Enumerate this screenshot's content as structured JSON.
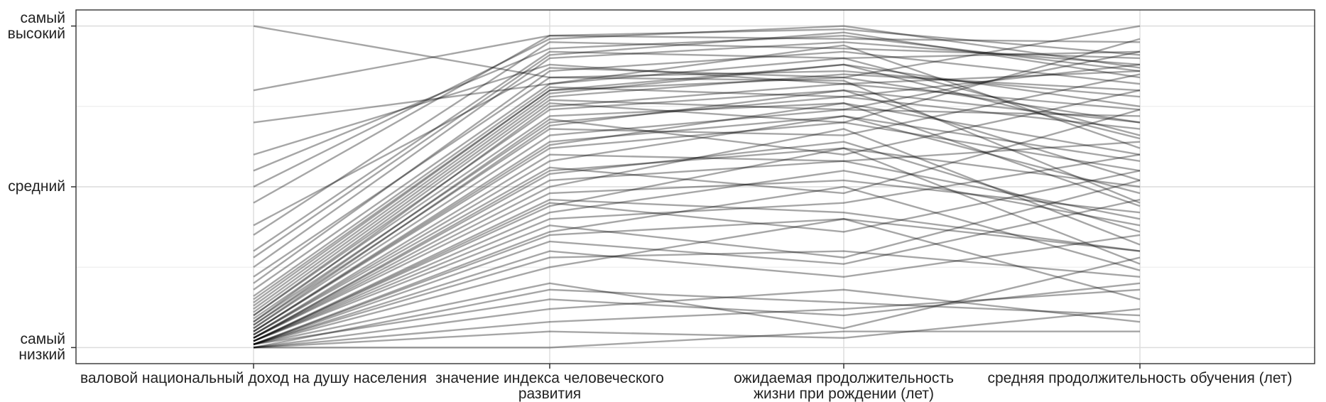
{
  "chart_data": {
    "type": "parallel",
    "categories": [
      "валовой национальный доход на душу населения",
      "значение индекса человеческого развития",
      "ожидаемая продолжительность жизни при рождении (лет)",
      "средняя продолжительность обучения (лет)"
    ],
    "ylim": [
      -0.05,
      1.05
    ],
    "yticks": [
      {
        "value": 0,
        "label": "самый низкий"
      },
      {
        "value": 0.5,
        "label": "средний"
      },
      {
        "value": 1,
        "label": "самый высокий"
      }
    ],
    "minor_grid": [
      0.25,
      0.75
    ],
    "grid": true,
    "line_color": "#000000",
    "line_opacity": 0.35,
    "series": [
      {
        "values": [
          0.01,
          0.35,
          0.4,
          0.3
        ]
      },
      {
        "values": [
          0.02,
          0.42,
          0.55,
          0.38
        ]
      },
      {
        "values": [
          0.0,
          0.05,
          0.03,
          0.12
        ]
      },
      {
        "values": [
          0.03,
          0.55,
          0.62,
          0.5
        ]
      },
      {
        "values": [
          0.05,
          0.62,
          0.7,
          0.55
        ]
      },
      {
        "values": [
          0.01,
          0.28,
          0.3,
          0.22
        ]
      },
      {
        "values": [
          0.04,
          0.58,
          0.72,
          0.48
        ]
      },
      {
        "values": [
          0.02,
          0.4,
          0.45,
          0.6
        ]
      },
      {
        "values": [
          0.08,
          0.7,
          0.78,
          0.68
        ]
      },
      {
        "values": [
          0.06,
          0.66,
          0.74,
          0.72
        ]
      },
      {
        "values": [
          0.0,
          0.0,
          0.05,
          0.05
        ]
      },
      {
        "values": [
          0.01,
          0.15,
          0.1,
          0.2
        ]
      },
      {
        "values": [
          0.03,
          0.48,
          0.52,
          0.42
        ]
      },
      {
        "values": [
          0.1,
          0.74,
          0.8,
          0.7
        ]
      },
      {
        "values": [
          0.12,
          0.78,
          0.85,
          0.8
        ]
      },
      {
        "values": [
          0.07,
          0.68,
          0.66,
          0.85
        ]
      },
      {
        "values": [
          0.15,
          0.8,
          0.88,
          0.75
        ]
      },
      {
        "values": [
          0.2,
          0.86,
          0.92,
          0.82
        ]
      },
      {
        "values": [
          0.25,
          0.9,
          0.95,
          0.88
        ]
      },
      {
        "values": [
          0.3,
          0.92,
          0.9,
          0.92
        ]
      },
      {
        "values": [
          0.35,
          0.95,
          0.93,
          0.9
        ]
      },
      {
        "values": [
          0.45,
          0.97,
          0.96,
          0.95
        ]
      },
      {
        "values": [
          0.55,
          0.93,
          0.97,
          0.86
        ]
      },
      {
        "values": [
          0.6,
          0.88,
          0.82,
          0.74
        ]
      },
      {
        "values": [
          0.7,
          0.82,
          0.94,
          0.62
        ]
      },
      {
        "values": [
          0.8,
          0.97,
          0.99,
          0.91
        ]
      },
      {
        "values": [
          1.0,
          0.84,
          0.83,
          0.45
        ]
      },
      {
        "values": [
          0.38,
          0.87,
          0.84,
          0.7
        ]
      },
      {
        "values": [
          0.22,
          0.84,
          0.86,
          0.78
        ]
      },
      {
        "values": [
          0.18,
          0.82,
          0.9,
          0.66
        ]
      },
      {
        "values": [
          0.09,
          0.72,
          0.76,
          0.6
        ]
      },
      {
        "values": [
          0.04,
          0.6,
          0.58,
          0.4
        ]
      },
      {
        "values": [
          0.02,
          0.45,
          0.36,
          0.55
        ]
      },
      {
        "values": [
          0.01,
          0.3,
          0.22,
          0.35
        ]
      },
      {
        "values": [
          0.0,
          0.12,
          0.18,
          0.08
        ]
      },
      {
        "values": [
          0.01,
          0.2,
          0.06,
          0.28
        ]
      },
      {
        "values": [
          0.02,
          0.38,
          0.28,
          0.52
        ]
      },
      {
        "values": [
          0.03,
          0.5,
          0.68,
          0.32
        ]
      },
      {
        "values": [
          0.05,
          0.64,
          0.72,
          0.58
        ]
      },
      {
        "values": [
          0.06,
          0.69,
          0.8,
          0.52
        ]
      },
      {
        "values": [
          0.08,
          0.75,
          0.82,
          0.86
        ]
      },
      {
        "values": [
          0.11,
          0.77,
          0.74,
          0.92
        ]
      },
      {
        "values": [
          0.13,
          0.79,
          0.88,
          0.65
        ]
      },
      {
        "values": [
          0.16,
          0.81,
          0.78,
          0.88
        ]
      },
      {
        "values": [
          0.02,
          0.44,
          0.62,
          0.26
        ]
      },
      {
        "values": [
          0.01,
          0.25,
          0.4,
          0.15
        ]
      },
      {
        "values": [
          0.0,
          0.08,
          0.12,
          0.18
        ]
      },
      {
        "values": [
          0.04,
          0.56,
          0.48,
          0.74
        ]
      },
      {
        "values": [
          0.07,
          0.71,
          0.6,
          0.8
        ]
      },
      {
        "values": [
          0.03,
          0.52,
          0.58,
          0.64
        ]
      },
      {
        "values": [
          0.01,
          0.33,
          0.26,
          0.46
        ]
      },
      {
        "values": [
          0.02,
          0.46,
          0.42,
          0.3
        ]
      },
      {
        "values": [
          0.1,
          0.76,
          0.7,
          0.96
        ]
      },
      {
        "values": [
          0.05,
          0.63,
          0.76,
          0.44
        ]
      },
      {
        "values": [
          0.14,
          0.8,
          0.84,
          1.0
        ]
      },
      {
        "values": [
          0.28,
          0.91,
          0.98,
          0.84
        ]
      },
      {
        "values": [
          0.5,
          0.96,
          1.0,
          0.87
        ]
      },
      {
        "values": [
          0.0,
          0.18,
          0.14,
          0.1
        ]
      },
      {
        "values": [
          0.01,
          0.36,
          0.5,
          0.24
        ]
      },
      {
        "values": [
          0.03,
          0.54,
          0.64,
          0.36
        ]
      }
    ]
  }
}
